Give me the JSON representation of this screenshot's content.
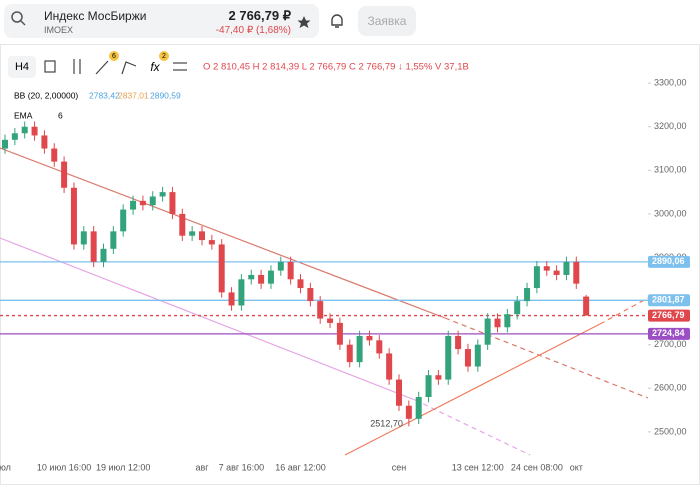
{
  "header": {
    "name": "Индекс МосБиржи",
    "ticker": "IMOEX",
    "price": "2 766,79 ₽",
    "change": "-47,40 ₽ (1,68%)",
    "button": "Заявка"
  },
  "toolbar": {
    "interval": "H4",
    "badge_indicators": "6",
    "badge_fx": "2",
    "ohlc": "O 2 810,45 H 2 814,39 L 2 766,79 C 2 766,79 ↓ 1,55% V 37,1B"
  },
  "legend": {
    "bb": "BB (20, 2,00000)",
    "bb_lower": "2783,42",
    "bb_middle": "2837,01",
    "bb_upper": "2890,59",
    "ema": "EMA",
    "ema_period": "6"
  },
  "chart_data": {
    "type": "candlestick",
    "categories": [
      "юл",
      null,
      null,
      null,
      null,
      null,
      "10 июл 16:00",
      null,
      null,
      null,
      null,
      null,
      "19 июл 12:00",
      null,
      null,
      null,
      null,
      null,
      null,
      null,
      "авг",
      null,
      null,
      null,
      "7 авг 16:00",
      null,
      null,
      null,
      null,
      null,
      "16 авг 12:00",
      null,
      null,
      null,
      null,
      null,
      null,
      null,
      null,
      null,
      "сен",
      null,
      null,
      null,
      null,
      null,
      null,
      null,
      "13 сен 12:00",
      null,
      null,
      null,
      null,
      null,
      "24 сен 08:00",
      null,
      null,
      null,
      "окт",
      null
    ],
    "open": [
      3150,
      3170,
      3185,
      3200,
      3180,
      3150,
      3120,
      3060,
      2930,
      2960,
      2890,
      2920,
      2960,
      3010,
      3030,
      3020,
      3040,
      3050,
      3000,
      2950,
      2960,
      2940,
      2930,
      2820,
      2790,
      2850,
      2860,
      2840,
      2870,
      2890,
      2850,
      2830,
      2800,
      2760,
      2750,
      2700,
      2660,
      2720,
      2710,
      2680,
      2620,
      2560,
      2530,
      2580,
      2630,
      2620,
      2720,
      2690,
      2650,
      2700,
      2760,
      2740,
      2770,
      2800,
      2830,
      2880,
      2870,
      2860,
      2890,
      2810.45
    ],
    "high": [
      3182,
      3197,
      3212,
      3212,
      3192,
      3162,
      3132,
      3072,
      2972,
      2972,
      2932,
      2972,
      3022,
      3042,
      3042,
      3052,
      3062,
      3062,
      3012,
      2972,
      2972,
      2952,
      2942,
      2832,
      2862,
      2872,
      2872,
      2882,
      2902,
      2902,
      2862,
      2842,
      2812,
      2772,
      2762,
      2712,
      2732,
      2732,
      2722,
      2692,
      2632,
      2572,
      2592,
      2642,
      2642,
      2732,
      2732,
      2702,
      2712,
      2772,
      2772,
      2782,
      2812,
      2842,
      2892,
      2892,
      2882,
      2902,
      2902,
      2814.39
    ],
    "low": [
      3138,
      3158,
      3173,
      3168,
      3138,
      3108,
      3048,
      2918,
      2918,
      2878,
      2878,
      2908,
      2948,
      2998,
      3008,
      3008,
      3028,
      2988,
      2938,
      2938,
      2928,
      2918,
      2808,
      2778,
      2778,
      2838,
      2828,
      2828,
      2858,
      2838,
      2818,
      2788,
      2748,
      2738,
      2688,
      2648,
      2648,
      2698,
      2668,
      2608,
      2548,
      2512.7,
      2518,
      2568,
      2608,
      2608,
      2678,
      2638,
      2638,
      2688,
      2728,
      2728,
      2758,
      2788,
      2818,
      2858,
      2848,
      2848,
      2828,
      2766.79
    ],
    "close": [
      3170,
      3185,
      3200,
      3180,
      3150,
      3120,
      3060,
      2930,
      2960,
      2890,
      2920,
      2960,
      3010,
      3030,
      3020,
      3040,
      3050,
      3000,
      2950,
      2960,
      2940,
      2930,
      2820,
      2790,
      2850,
      2860,
      2840,
      2870,
      2890,
      2850,
      2830,
      2800,
      2760,
      2750,
      2700,
      2660,
      2720,
      2710,
      2680,
      2620,
      2560,
      2530,
      2580,
      2630,
      2620,
      2720,
      2690,
      2650,
      2700,
      2760,
      2740,
      2770,
      2800,
      2830,
      2880,
      2870,
      2860,
      2890,
      2840,
      2766.79
    ],
    "up_color": "#33a37b",
    "down_color": "#e0474c",
    "ylim": [
      2447,
      3376
    ],
    "yticks": [
      {
        "value": 2500,
        "label": "2500,00"
      },
      {
        "value": 2600,
        "label": "2600,00"
      },
      {
        "value": 2700,
        "label": "2700,00"
      },
      {
        "value": 2800,
        "label": "2800,00"
      },
      {
        "value": 2900,
        "label": "2900,00"
      },
      {
        "value": 3000,
        "label": "3000,00"
      },
      {
        "value": 3100,
        "label": "3100,00"
      },
      {
        "value": 3200,
        "label": "3200,00"
      },
      {
        "value": 3300,
        "label": "3300,00"
      }
    ],
    "levels": [
      {
        "value": 2890.06,
        "label": "2890,06",
        "color": "#7cc0ee"
      },
      {
        "value": 2801.87,
        "label": "2801,87",
        "color": "#7cc0ee"
      },
      {
        "value": 2766.79,
        "label": "2766,79",
        "color": "#e0474c"
      },
      {
        "value": 2724.84,
        "label": "2724,84",
        "color": "#9c4fc4"
      }
    ],
    "low_label": "2512,70"
  }
}
